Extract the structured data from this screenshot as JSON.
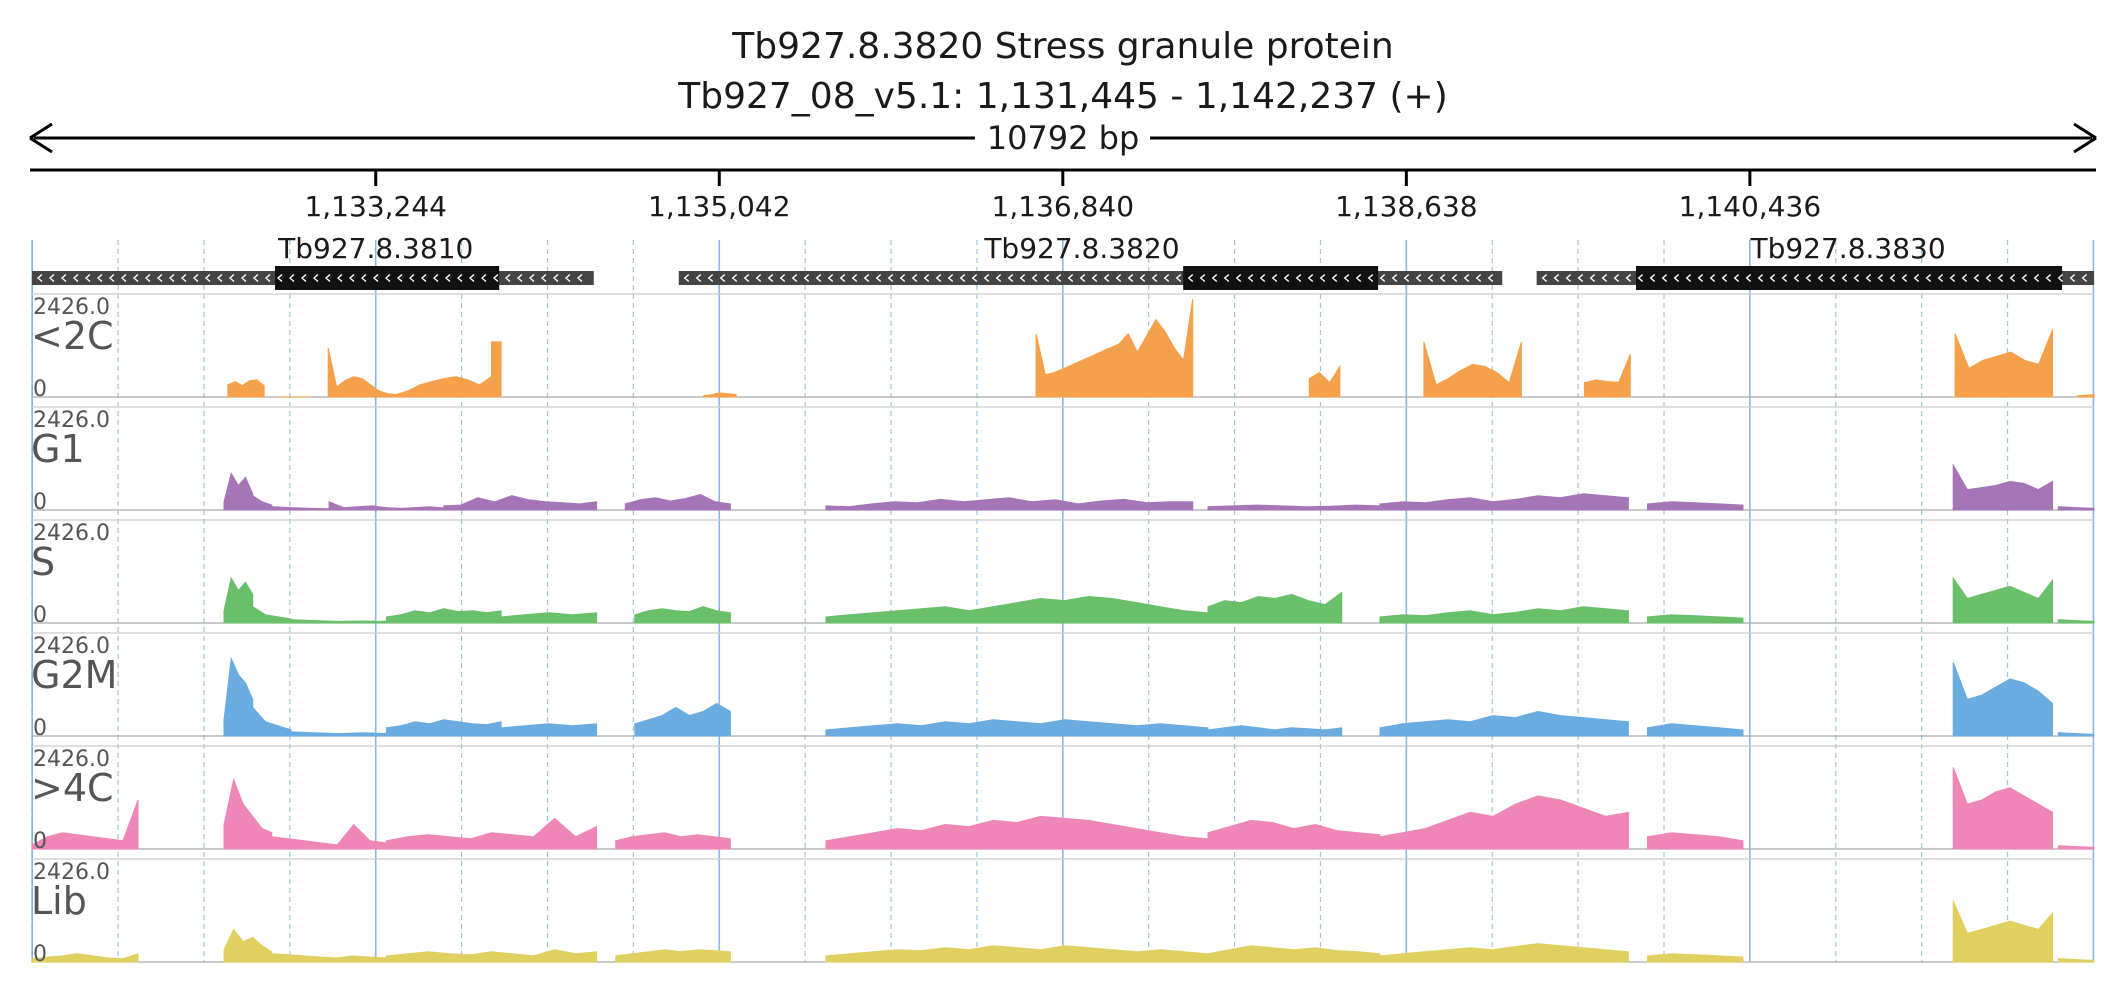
{
  "header": {
    "gene_line": "Tb927.8.3820  Stress granule protein",
    "locus_line": "Tb927_08_v5.1: 1,131,445 - 1,142,237 (+)",
    "span_label": "10792 bp"
  },
  "colors": {
    "text": "#1a1a1a",
    "track_label": "#555555",
    "gene_box": "#111111",
    "gene_utr": "#444444",
    "grid": "#7fb0dd",
    "baseline": "#aaaaaa"
  },
  "chart_data": {
    "type": "area",
    "region": {
      "chrom": "Tb927_08_v5.1",
      "start": 1131445,
      "end": 1142237,
      "strand": "+"
    },
    "x_ticks": [
      {
        "pos": 1133244,
        "label": "1,133,244"
      },
      {
        "pos": 1135042,
        "label": "1,135,042"
      },
      {
        "pos": 1136840,
        "label": "1,136,840"
      },
      {
        "pos": 1138638,
        "label": "1,138,638"
      },
      {
        "pos": 1140436,
        "label": "1,140,436"
      }
    ],
    "genes": [
      {
        "name": "Tb927.8.3810",
        "start": 1131445,
        "end": 1134385,
        "cds_start": 1132717,
        "cds_end": 1133890,
        "label_pos": 1133244
      },
      {
        "name": "Tb927.8.3820",
        "start": 1134830,
        "end": 1139140,
        "cds_start": 1137470,
        "cds_end": 1138490,
        "label_pos": 1136940
      },
      {
        "name": "Tb927.8.3830",
        "start": 1139320,
        "end": 1142237,
        "cds_start": 1139840,
        "cds_end": 1142070,
        "label_pos": 1140950
      }
    ],
    "y_max_label": "2426.0",
    "y_min_label": "0",
    "y_range": [
      0,
      2426
    ],
    "tracks": [
      {
        "name": "<2C",
        "color": "#f5a04a",
        "segments": [
          [
            1132470,
            1132660,
            [
              300,
              380,
              280,
              400,
              420,
              280
            ]
          ],
          [
            1132730,
            1132900,
            [
              0,
              0,
              0
            ]
          ],
          [
            1132995,
            1133350,
            [
              1200,
              250,
              400,
              500,
              450,
              300,
              150,
              80,
              60
            ]
          ],
          [
            1133350,
            1133850,
            [
              60,
              150,
              300,
              380,
              450,
              500,
              420,
              300,
              500
            ]
          ],
          [
            1133850,
            1133900,
            [
              1350,
              1350
            ]
          ],
          [
            1134960,
            1135130,
            [
              30,
              60,
              100,
              80,
              60
            ]
          ],
          [
            1136700,
            1137520,
            [
              1550,
              550,
              600,
              700,
              800,
              900,
              1000,
              1100,
              1200,
              1300,
              1550,
              1100,
              1500,
              1900,
              1600,
              1200,
              900,
              2400
            ]
          ],
          [
            1138130,
            1138290,
            [
              450,
              600,
              350,
              750
            ]
          ],
          [
            1138730,
            1139240,
            [
              1350,
              300,
              450,
              650,
              800,
              750,
              600,
              350,
              1350
            ]
          ],
          [
            1139570,
            1139810,
            [
              350,
              420,
              380,
              360,
              1050
            ]
          ],
          [
            1141510,
            1142020,
            [
              1550,
              700,
              900,
              1000,
              1100,
              900,
              800,
              1650
            ]
          ],
          [
            1142150,
            1142237,
            [
              30,
              60
            ]
          ]
        ]
      },
      {
        "name": "G1",
        "color": "#a675b8",
        "segments": [
          [
            1132450,
            1132600,
            [
              200,
              900,
              600,
              800,
              400
            ]
          ],
          [
            1132600,
            1132700,
            [
              350,
              200,
              120
            ]
          ],
          [
            1132700,
            1133000,
            [
              80,
              60,
              40,
              30
            ]
          ],
          [
            1133000,
            1133600,
            [
              200,
              60,
              80,
              100,
              60,
              40,
              60,
              80,
              50
            ]
          ],
          [
            1133600,
            1134400,
            [
              100,
              120,
              300,
              200,
              350,
              250,
              200,
              180,
              150,
              200
            ]
          ],
          [
            1134550,
            1135100,
            [
              150,
              250,
              300,
              220,
              280,
              380,
              200,
              150
            ]
          ],
          [
            1135600,
            1137520,
            [
              100,
              80,
              150,
              200,
              180,
              260,
              200,
              250,
              300,
              200,
              250,
              150,
              220,
              260,
              180,
              200,
              200
            ]
          ],
          [
            1137600,
            1138500,
            [
              80,
              100,
              120,
              100,
              80,
              90,
              120,
              100
            ]
          ],
          [
            1138500,
            1139800,
            [
              150,
              200,
              180,
              250,
              300,
              200,
              260,
              350,
              300,
              400,
              350,
              300
            ]
          ],
          [
            1139900,
            1140400,
            [
              150,
              200,
              180,
              150,
              120
            ]
          ],
          [
            1141500,
            1142020,
            [
              1100,
              500,
              550,
              600,
              700,
              650,
              500,
              700
            ]
          ],
          [
            1142050,
            1142237,
            [
              80,
              60,
              40
            ]
          ]
        ]
      },
      {
        "name": "S",
        "color": "#6abf6a",
        "segments": [
          [
            1132450,
            1132600,
            [
              300,
              1100,
              800,
              1000,
              700
            ]
          ],
          [
            1132600,
            1132800,
            [
              400,
              200,
              150,
              100
            ]
          ],
          [
            1132800,
            1133300,
            [
              80,
              60,
              40,
              50,
              40
            ]
          ],
          [
            1133300,
            1133900,
            [
              150,
              200,
              300,
              250,
              350,
              280,
              300,
              250,
              300
            ]
          ],
          [
            1133900,
            1134400,
            [
              150,
              200,
              250,
              200,
              250
            ]
          ],
          [
            1134600,
            1135100,
            [
              200,
              300,
              350,
              300,
              280,
              400,
              300,
              250
            ]
          ],
          [
            1135600,
            1137600,
            [
              150,
              200,
              250,
              300,
              350,
              400,
              300,
              400,
              500,
              600,
              550,
              650,
              600,
              500,
              400,
              300,
              250
            ]
          ],
          [
            1137600,
            1138300,
            [
              400,
              550,
              500,
              650,
              600,
              700,
              550,
              450,
              750
            ]
          ],
          [
            1138500,
            1139800,
            [
              150,
              200,
              180,
              250,
              300,
              200,
              260,
              350,
              300,
              400,
              350,
              300
            ]
          ],
          [
            1139900,
            1140400,
            [
              150,
              200,
              180,
              150,
              120
            ]
          ],
          [
            1141500,
            1142020,
            [
              1100,
              600,
              700,
              800,
              900,
              750,
              600,
              1050
            ]
          ],
          [
            1142050,
            1142237,
            [
              80,
              60,
              40
            ]
          ]
        ]
      },
      {
        "name": "G2M",
        "color": "#6aace0",
        "segments": [
          [
            1132450,
            1132600,
            [
              400,
              1900,
              1500,
              1300,
              900
            ]
          ],
          [
            1132600,
            1132800,
            [
              700,
              350,
              250,
              150
            ]
          ],
          [
            1132800,
            1133300,
            [
              100,
              80,
              60,
              80,
              60
            ]
          ],
          [
            1133300,
            1133900,
            [
              200,
              250,
              350,
              300,
              400,
              350,
              300,
              280,
              350
            ]
          ],
          [
            1133900,
            1134400,
            [
              200,
              250,
              300,
              250,
              300
            ]
          ],
          [
            1134600,
            1135100,
            [
              300,
              400,
              500,
              700,
              500,
              600,
              800,
              600
            ]
          ],
          [
            1135600,
            1137600,
            [
              150,
              200,
              250,
              300,
              250,
              350,
              300,
              400,
              350,
              300,
              400,
              350,
              300,
              250,
              300,
              250,
              200
            ]
          ],
          [
            1137600,
            1138300,
            [
              150,
              200,
              250,
              200,
              150,
              200,
              180,
              150,
              200
            ]
          ],
          [
            1138500,
            1139800,
            [
              200,
              300,
              350,
              400,
              350,
              500,
              450,
              600,
              500,
              450,
              400,
              350
            ]
          ],
          [
            1139900,
            1140400,
            [
              200,
              300,
              250,
              200,
              150
            ]
          ],
          [
            1141500,
            1142020,
            [
              1800,
              900,
              1000,
              1200,
              1400,
              1300,
              1100,
              800
            ]
          ],
          [
            1142050,
            1142237,
            [
              80,
              60,
              40
            ]
          ]
        ]
      },
      {
        "name": ">4C",
        "color": "#ef86b8",
        "segments": [
          [
            1131445,
            1132000,
            [
              100,
              300,
              400,
              350,
              300,
              250,
              200,
              1200
            ]
          ],
          [
            1132450,
            1132700,
            [
              600,
              1700,
              1100,
              800,
              500,
              400
            ]
          ],
          [
            1132700,
            1133300,
            [
              300,
              250,
              200,
              150,
              100,
              600,
              200,
              150
            ]
          ],
          [
            1133300,
            1134400,
            [
              200,
              300,
              350,
              300,
              250,
              400,
              350,
              300,
              750,
              300,
              550
            ]
          ],
          [
            1134500,
            1135100,
            [
              200,
              300,
              350,
              400,
              300,
              350,
              300,
              250
            ]
          ],
          [
            1135600,
            1137600,
            [
              200,
              300,
              400,
              500,
              450,
              600,
              550,
              700,
              650,
              800,
              750,
              700,
              600,
              500,
              400,
              300,
              250
            ]
          ],
          [
            1137600,
            1138500,
            [
              400,
              550,
              700,
              650,
              500,
              600,
              450,
              400,
              350
            ]
          ],
          [
            1138500,
            1139800,
            [
              300,
              400,
              500,
              700,
              900,
              800,
              1100,
              1300,
              1200,
              1000,
              800,
              900
            ]
          ],
          [
            1139900,
            1140400,
            [
              300,
              400,
              350,
              300,
              200
            ]
          ],
          [
            1141500,
            1142020,
            [
              2000,
              1100,
              1200,
              1400,
              1500,
              1300,
              1100,
              900
            ]
          ],
          [
            1142050,
            1142237,
            [
              80,
              60,
              40
            ]
          ]
        ]
      },
      {
        "name": "Lib",
        "color": "#e0d060",
        "segments": [
          [
            1131445,
            1132000,
            [
              80,
              120,
              150,
              200,
              150,
              100,
              80,
              200
            ]
          ],
          [
            1132450,
            1132700,
            [
              300,
              800,
              500,
              600,
              400,
              250
            ]
          ],
          [
            1132700,
            1133300,
            [
              200,
              180,
              150,
              120,
              100,
              150,
              120,
              100
            ]
          ],
          [
            1133300,
            1134400,
            [
              150,
              200,
              250,
              200,
              180,
              250,
              200,
              150,
              300,
              200,
              250
            ]
          ],
          [
            1134500,
            1135100,
            [
              150,
              200,
              250,
              300,
              250,
              300,
              280,
              250
            ]
          ],
          [
            1135600,
            1137600,
            [
              150,
              200,
              250,
              300,
              280,
              350,
              300,
              400,
              350,
              300,
              400,
              350,
              300,
              250,
              300,
              250,
              200
            ]
          ],
          [
            1137600,
            1138500,
            [
              200,
              300,
              400,
              350,
              300,
              350,
              280,
              250,
              200
            ]
          ],
          [
            1138500,
            1139800,
            [
              150,
              200,
              250,
              300,
              350,
              300,
              380,
              450,
              400,
              350,
              300,
              250
            ]
          ],
          [
            1139900,
            1140400,
            [
              150,
              200,
              180,
              150,
              120
            ]
          ],
          [
            1141500,
            1142020,
            [
              1500,
              700,
              800,
              900,
              1000,
              900,
              800,
              1200
            ]
          ],
          [
            1142050,
            1142237,
            [
              80,
              60,
              40
            ]
          ]
        ]
      }
    ]
  }
}
